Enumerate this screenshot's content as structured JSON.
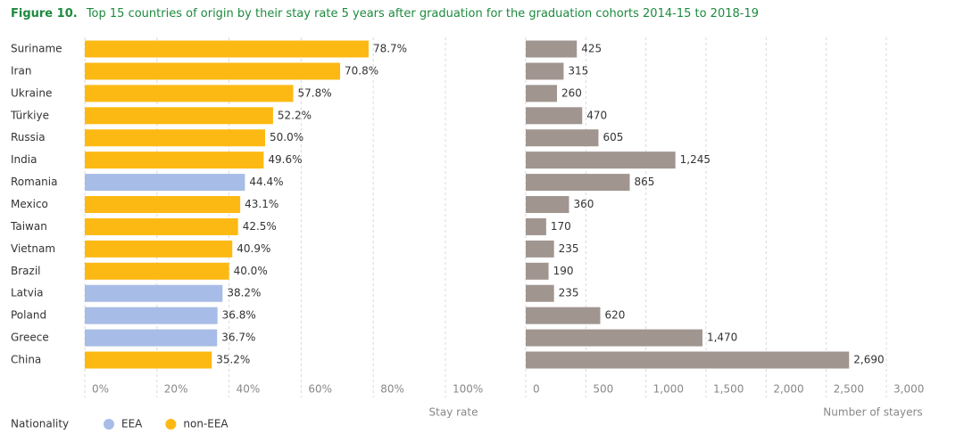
{
  "figure_label": "Figure 10.",
  "title": "Top 15 countries of origin by their stay rate 5 years after graduation for the graduation cohorts 2014-15 to 2018-19",
  "legend": {
    "title": "Nationality",
    "items": [
      {
        "name": "EEA",
        "color": "#a7bce6"
      },
      {
        "name": "non-EEA",
        "color": "#fdb913"
      }
    ]
  },
  "chart_data": [
    {
      "type": "hbar",
      "xlabel": "Stay rate",
      "categories": [
        "Suriname",
        "Iran",
        "Ukraine",
        "Türkiye",
        "Russia",
        "India",
        "Romania",
        "Mexico",
        "Taiwan",
        "Vietnam",
        "Brazil",
        "Latvia",
        "Poland",
        "Greece",
        "China"
      ],
      "values": [
        78.7,
        70.8,
        57.8,
        52.2,
        50.0,
        49.6,
        44.4,
        43.1,
        42.5,
        40.9,
        40.0,
        38.2,
        36.8,
        36.7,
        35.2
      ],
      "value_labels": [
        "78.7%",
        "70.8%",
        "57.8%",
        "52.2%",
        "50.0%",
        "49.6%",
        "44.4%",
        "43.1%",
        "42.5%",
        "40.9%",
        "40.0%",
        "38.2%",
        "36.8%",
        "36.7%",
        "35.2%"
      ],
      "colors": [
        "#fdb913",
        "#fdb913",
        "#fdb913",
        "#fdb913",
        "#fdb913",
        "#fdb913",
        "#a7bce6",
        "#fdb913",
        "#fdb913",
        "#fdb913",
        "#fdb913",
        "#a7bce6",
        "#a7bce6",
        "#a7bce6",
        "#fdb913"
      ],
      "xlim": [
        0,
        100
      ],
      "xticks": [
        {
          "value": 0,
          "label": "0%"
        },
        {
          "value": 20,
          "label": "20%"
        },
        {
          "value": 40,
          "label": "40%"
        },
        {
          "value": 60,
          "label": "60%"
        },
        {
          "value": 80,
          "label": "80%"
        },
        {
          "value": 100,
          "label": "100%"
        }
      ],
      "grid": true
    },
    {
      "type": "hbar",
      "xlabel": "Number of stayers",
      "values": [
        425,
        315,
        260,
        470,
        605,
        1245,
        865,
        360,
        170,
        235,
        190,
        235,
        620,
        1470,
        2690
      ],
      "value_labels": [
        "425",
        "315",
        "260",
        "470",
        "605",
        "1,245",
        "865",
        "360",
        "170",
        "235",
        "190",
        "235",
        "620",
        "1,470",
        "2,690"
      ],
      "color": "#a0958f",
      "xlim": [
        0,
        3000
      ],
      "xticks": [
        0,
        500,
        {
          "value": 1000,
          "label": "1,000"
        },
        {
          "value": 1500,
          "label": "1,500"
        },
        {
          "value": 2000,
          "label": "2,000"
        },
        {
          "value": 2500,
          "label": "2,500"
        },
        {
          "value": 3000,
          "label": "3,000"
        }
      ],
      "grid": true
    }
  ]
}
